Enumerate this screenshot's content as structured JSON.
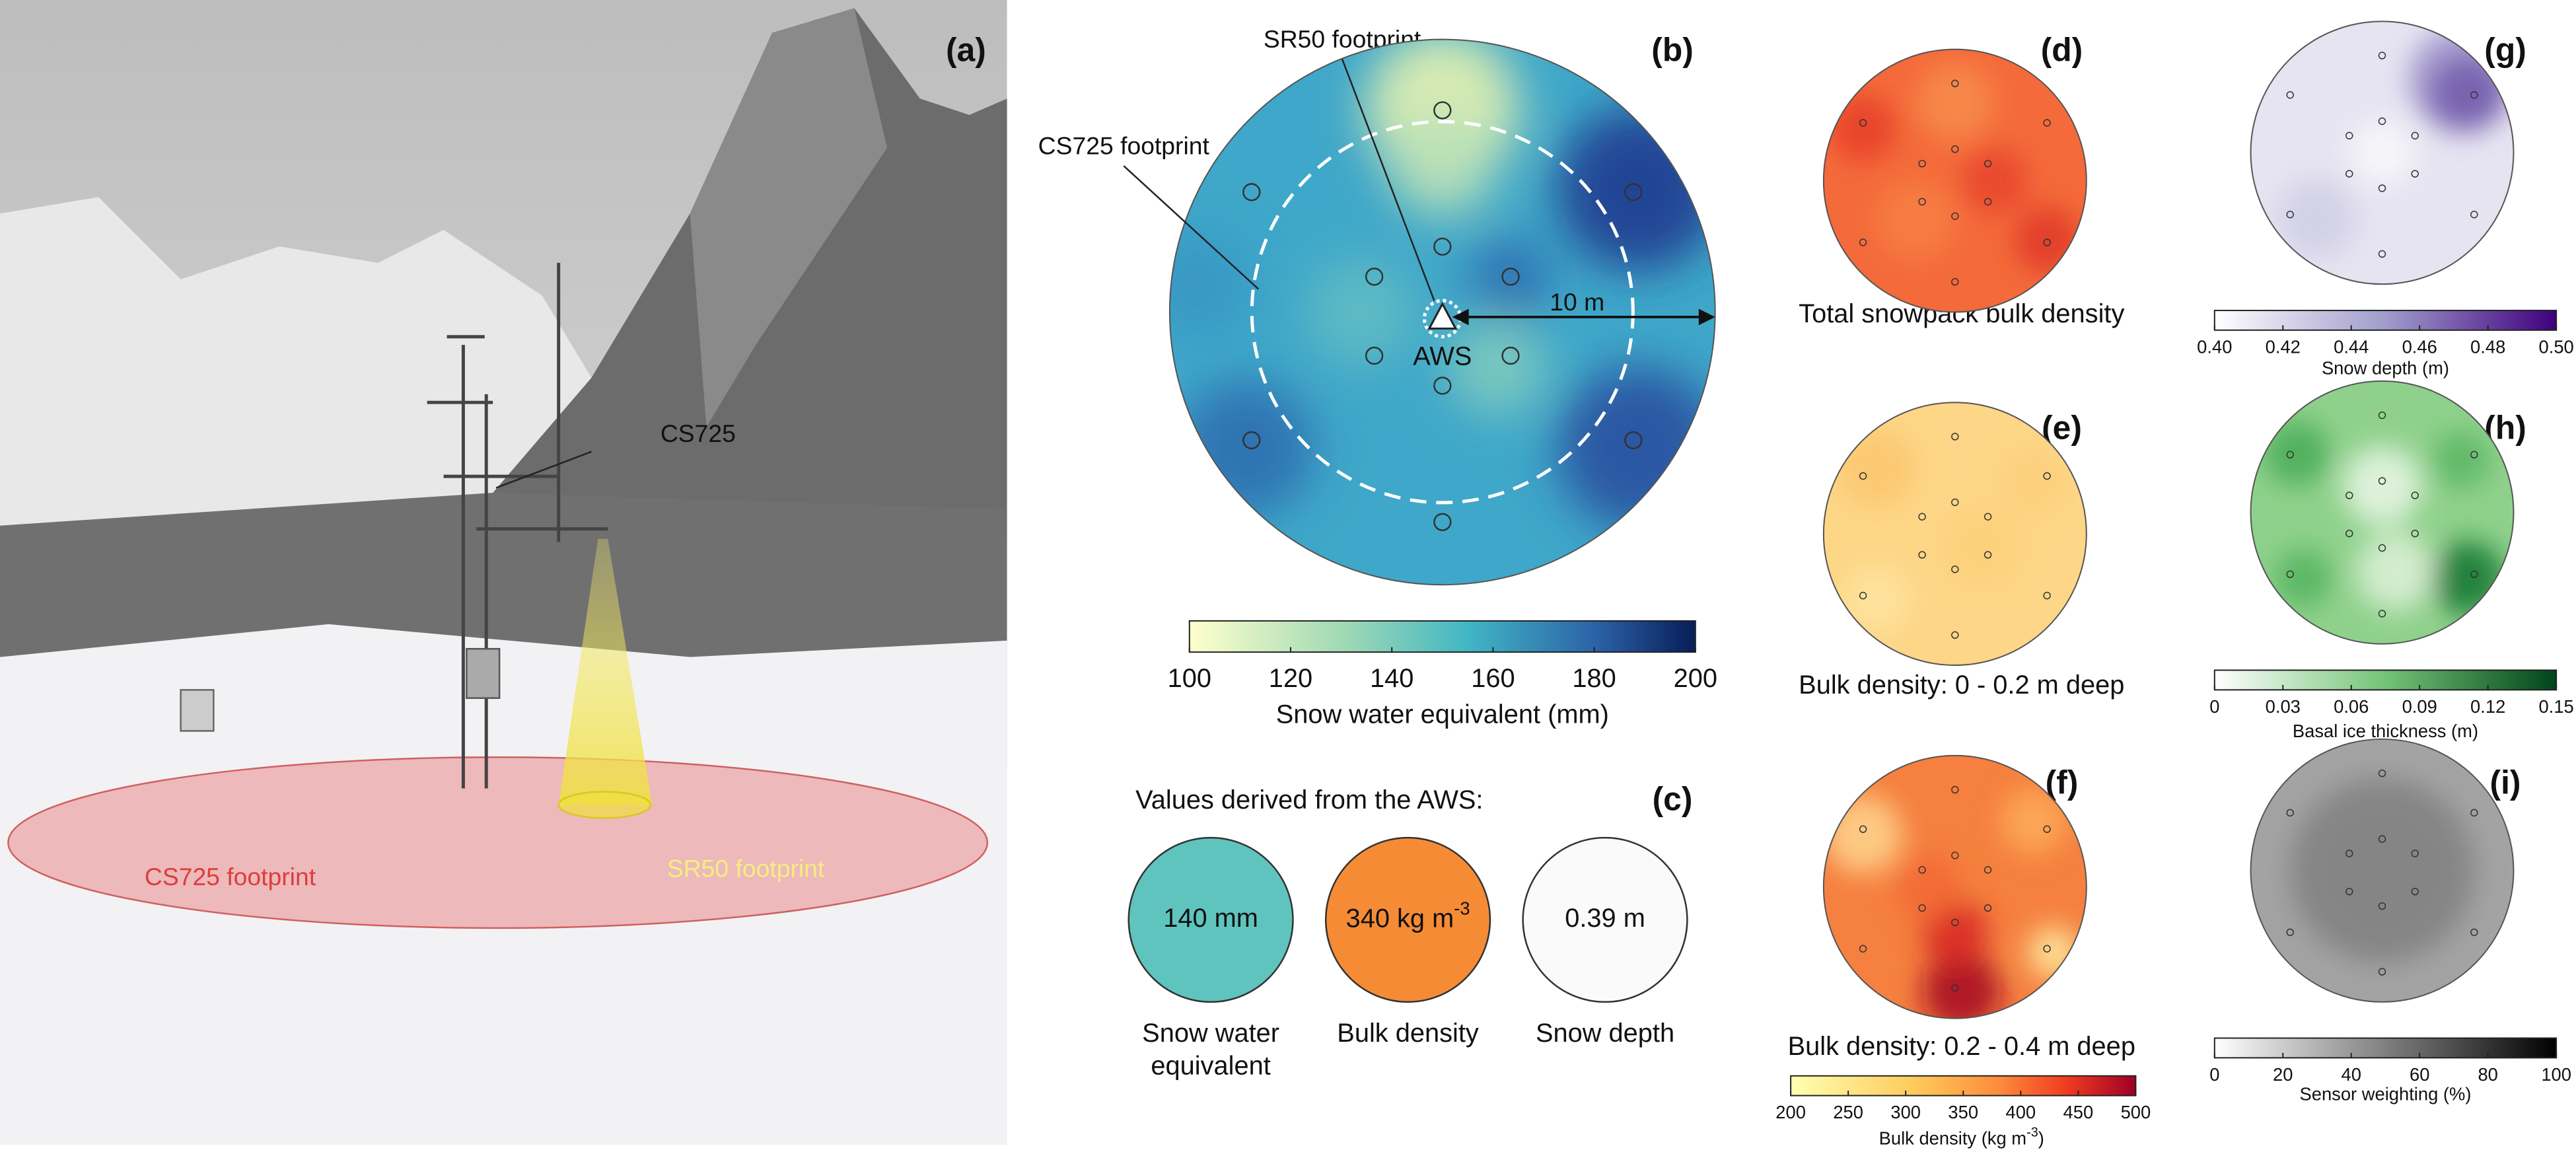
{
  "panels": {
    "a": {
      "label": "(a)",
      "annotations": [
        "CS725",
        "SR50 footprint",
        "CS725 footprint"
      ]
    },
    "b": {
      "label": "(b)",
      "annotations": [
        "SR50 footprint",
        "CS725 footprint",
        "AWS",
        "10 m"
      ],
      "colorbar": {
        "label": "Snow water equivalent (mm)",
        "lim": [
          100,
          200
        ],
        "ticks": [
          100,
          120,
          140,
          160,
          180,
          200
        ]
      }
    },
    "c": {
      "label": "(c)",
      "title": "Values derived from the AWS:",
      "items": [
        {
          "value": "140 mm",
          "name": [
            "Snow water",
            "equivalent"
          ]
        },
        {
          "value": "340 kg m",
          "sup": "-3",
          "name": [
            "Bulk density"
          ]
        },
        {
          "value": "0.39 m",
          "name": [
            "Snow depth"
          ]
        }
      ]
    },
    "d": {
      "label": "(d)",
      "caption": "Total snowpack bulk density"
    },
    "e": {
      "label": "(e)",
      "caption": "Bulk density: 0 - 0.2 m deep"
    },
    "f": {
      "label": "(f)",
      "caption": "Bulk density: 0.2 - 0.4 m deep",
      "colorbar": {
        "label": "Bulk density (kg m",
        "label_sup": "-3",
        "label_end": ")",
        "lim": [
          200,
          500
        ],
        "ticks": [
          200,
          250,
          300,
          350,
          400,
          450,
          500
        ]
      }
    },
    "g": {
      "label": "(g)",
      "colorbar": {
        "label": "Snow depth (m)",
        "lim": [
          0.4,
          0.5
        ],
        "ticks": [
          {
            "value": 0.4,
            "label": "0.40"
          },
          0.42,
          0.44,
          0.46,
          0.48,
          {
            "value": 0.5,
            "label": "0.50"
          }
        ]
      }
    },
    "h": {
      "label": "(h)",
      "colorbar": {
        "label": "Basal ice thickness (m)",
        "lim": [
          0,
          0.15
        ],
        "ticks": [
          0,
          0.03,
          0.06,
          0.09,
          0.12,
          0.15
        ]
      }
    },
    "i": {
      "label": "(i)",
      "colorbar": {
        "label": "Sensor weighting (%)",
        "lim": [
          0,
          100
        ],
        "ticks": [
          0,
          20,
          40,
          60,
          80,
          100
        ]
      }
    }
  }
}
